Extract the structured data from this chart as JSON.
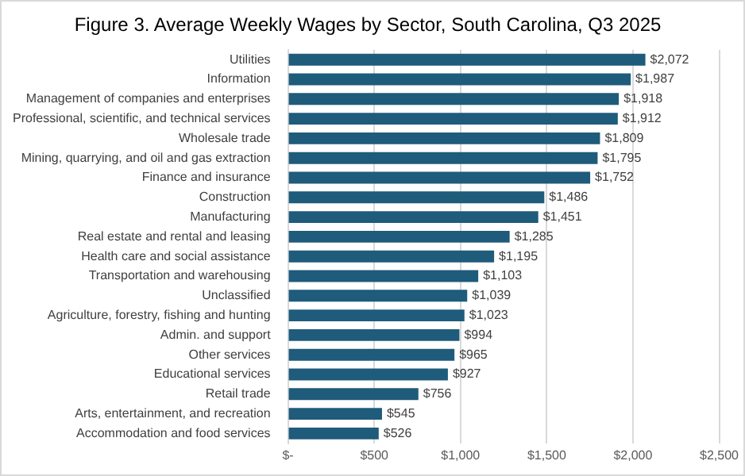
{
  "chart_data": {
    "type": "bar",
    "orientation": "horizontal",
    "title": "Figure 3. Average Weekly Wages by Sector, South Carolina, Q3 2025",
    "categories": [
      "Utilities",
      "Information",
      "Management of companies and enterprises",
      "Professional, scientific, and technical services",
      "Wholesale trade",
      "Mining, quarrying, and oil and gas extraction",
      "Finance and insurance",
      "Construction",
      "Manufacturing",
      "Real estate and rental and leasing",
      "Health care and social assistance",
      "Transportation and warehousing",
      "Unclassified",
      "Agriculture, forestry, fishing and hunting",
      "Admin. and support",
      "Other services",
      "Educational services",
      "Retail trade",
      "Arts, entertainment, and recreation",
      "Accommodation and food services"
    ],
    "values": [
      2072,
      1987,
      1918,
      1912,
      1809,
      1795,
      1752,
      1486,
      1451,
      1285,
      1195,
      1103,
      1039,
      1023,
      994,
      965,
      927,
      756,
      545,
      526
    ],
    "value_labels": [
      "$2,072",
      "$1,987",
      "$1,918",
      "$1,912",
      "$1,809",
      "$1,795",
      "$1,752",
      "$1,486",
      "$1,451",
      "$1,285",
      "$1,195",
      "$1,103",
      "$1,039",
      "$1,023",
      "$994",
      "$965",
      "$927",
      "$756",
      "$545",
      "$526"
    ],
    "color": "#1f5b7a",
    "xlim": [
      0,
      2500
    ],
    "xticks": [
      {
        "value": 0,
        "label": "$-"
      },
      {
        "value": 500,
        "label": "$500"
      },
      {
        "value": 1000,
        "label": "$1,000"
      },
      {
        "value": 1500,
        "label": "$1,500"
      },
      {
        "value": 2000,
        "label": "$2,000"
      },
      {
        "value": 2500,
        "label": "$2,500"
      }
    ],
    "grid": "x",
    "legend": false
  }
}
